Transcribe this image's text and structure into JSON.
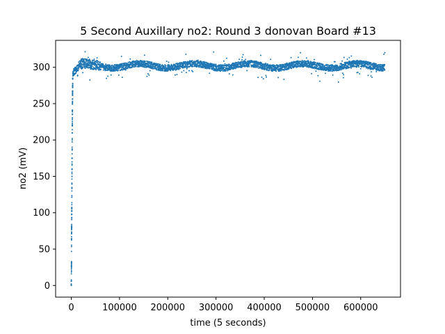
{
  "chart_data": {
    "type": "scatter",
    "title": "5 Second Auxillary no2: Round 3 donovan Board #13",
    "xlabel": "time (5 seconds)",
    "ylabel": "no2 (mV)",
    "xlim": [
      -32500,
      682500
    ],
    "ylim": [
      -16,
      337
    ],
    "xticks": [
      0,
      100000,
      200000,
      300000,
      400000,
      500000,
      600000
    ],
    "yticks": [
      0,
      50,
      100,
      150,
      200,
      250,
      300
    ],
    "grid": false,
    "color": "#1f77b4",
    "series": [
      {
        "values_description_x_range": [
          0,
          650000
        ],
        "x": [
          0,
          0,
          0,
          200,
          400,
          600,
          800,
          1000,
          1200,
          1400,
          1600,
          1800,
          2000,
          2200,
          2400,
          2600,
          2800,
          3000,
          3500,
          4000,
          5000,
          6000,
          8000,
          10000,
          12000,
          15000,
          20000,
          25000,
          30000,
          40000,
          50000,
          60000,
          80000,
          100000,
          120000,
          140000,
          160000,
          180000,
          200000,
          220000,
          240000,
          260000,
          280000,
          295000,
          300000,
          320000,
          340000,
          360000,
          380000,
          400000,
          420000,
          440000,
          460000,
          480000,
          500000,
          520000,
          540000,
          560000,
          580000,
          600000,
          620000,
          640000,
          648000,
          650000
        ],
        "y": [
          0,
          1,
          2,
          16,
          31,
          67,
          84,
          103,
          130,
          150,
          170,
          190,
          210,
          230,
          250,
          265,
          275,
          285,
          290,
          292,
          295,
          297,
          298,
          300,
          302,
          298,
          300,
          303,
          306,
          305,
          304,
          303,
          302,
          301,
          303,
          302,
          301,
          300,
          301,
          302,
          300,
          301,
          302,
          321,
          304,
          303,
          302,
          301,
          300,
          302,
          303,
          302,
          301,
          303,
          304,
          303,
          302,
          300,
          299,
          298,
          297,
          296,
          318,
          320
        ]
      }
    ]
  }
}
